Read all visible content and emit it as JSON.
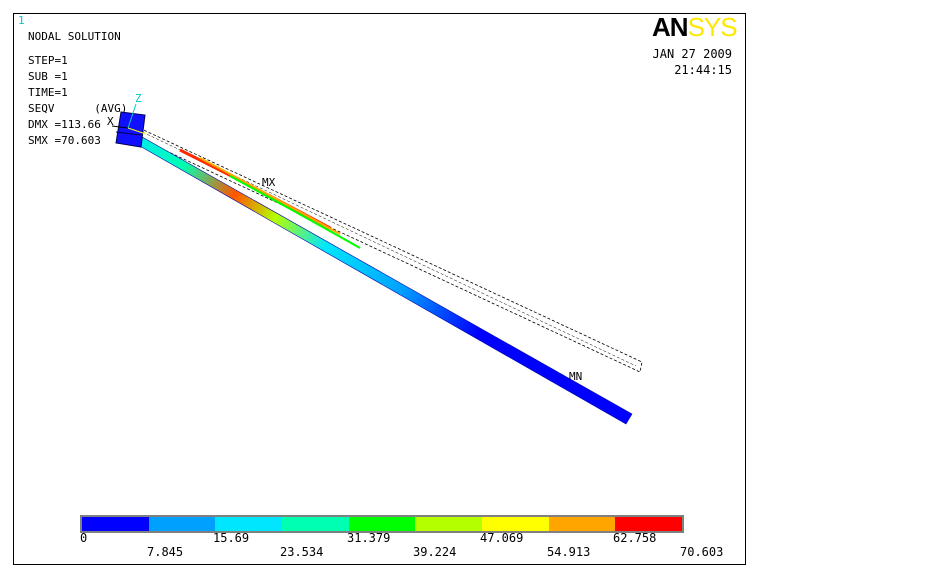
{
  "window_number": "1",
  "brand": {
    "part1": "AN",
    "part2": "SYS"
  },
  "header": {
    "title": "NODAL SOLUTION",
    "lines": [
      "STEP=1",
      "SUB =1",
      "TIME=1",
      "SEQV      (AVG)",
      "DMX =113.66",
      "SMX =70.603"
    ]
  },
  "date": "JAN 27 2009",
  "time": "21:44:15",
  "markers": {
    "max": "MX",
    "min": "MN",
    "axis_x": "X",
    "axis_z": "Z"
  },
  "legend": {
    "colors": [
      "#0000ff",
      "#00a0ff",
      "#00e6ff",
      "#00ffb0",
      "#00ff00",
      "#b4ff00",
      "#ffff00",
      "#ffa500",
      "#ff0000"
    ],
    "labels_top": [
      "0",
      "15.69",
      "31.379",
      "47.069",
      "62.758"
    ],
    "labels_bottom": [
      "7.845",
      "23.534",
      "39.224",
      "54.913",
      "70.603"
    ]
  }
}
